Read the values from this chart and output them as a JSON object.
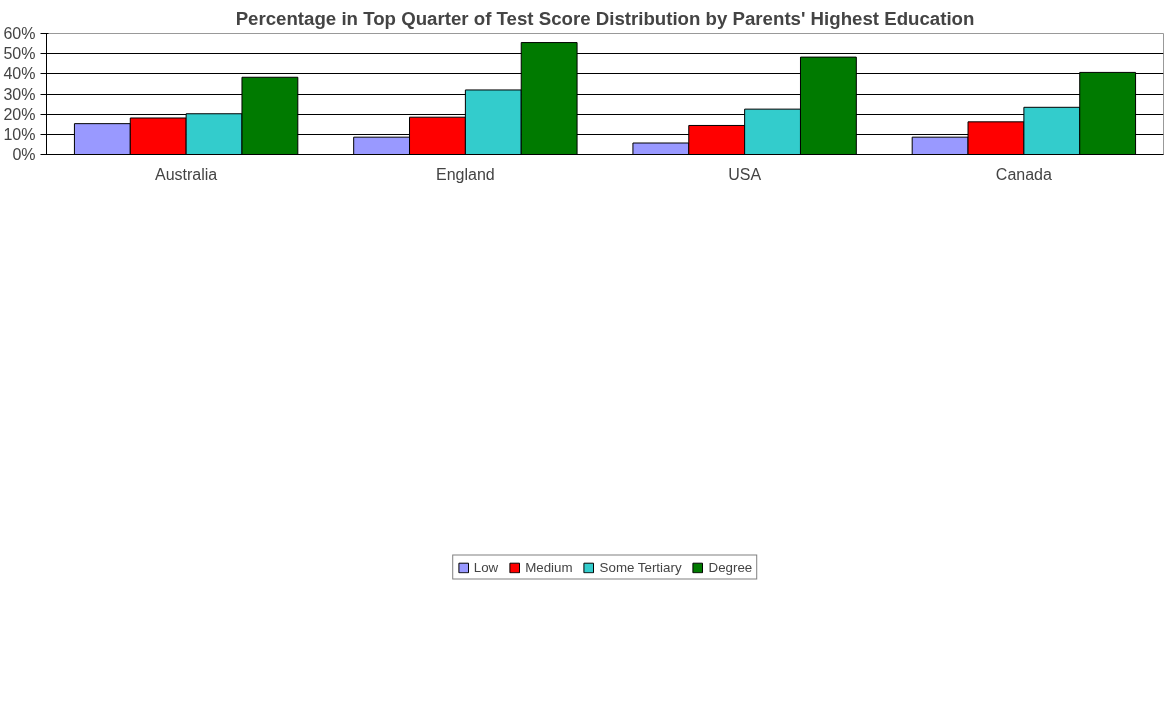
{
  "chart_data": {
    "type": "bar",
    "title": "Percentage in Top Quarter of Test Score Distribution by Parents' Highest Education",
    "categories": [
      "Australia",
      "England",
      "USA",
      "Canada"
    ],
    "series": [
      {
        "name": "Low",
        "color": "#9999ff",
        "values": [
          15.3,
          8.6,
          5.7,
          8.6
        ]
      },
      {
        "name": "Medium",
        "color": "#ff0000",
        "values": [
          18.1,
          18.5,
          14.4,
          16.2
        ]
      },
      {
        "name": "Some Tertiary",
        "color": "#33cccc",
        "values": [
          20.2,
          32.0,
          22.5,
          23.4
        ]
      },
      {
        "name": "Degree",
        "color": "#007a00",
        "values": [
          38.3,
          55.5,
          48.3,
          40.7
        ]
      }
    ],
    "ylim": [
      0,
      60
    ],
    "yticks": [
      {
        "value": 0,
        "label": "0%"
      },
      {
        "value": 10,
        "label": "10%"
      },
      {
        "value": 20,
        "label": "20%"
      },
      {
        "value": 30,
        "label": "30%"
      },
      {
        "value": 40,
        "label": "40%"
      },
      {
        "value": 50,
        "label": "50%"
      },
      {
        "value": 60,
        "label": "60%"
      }
    ],
    "grid": "y",
    "legend": "bottom"
  }
}
